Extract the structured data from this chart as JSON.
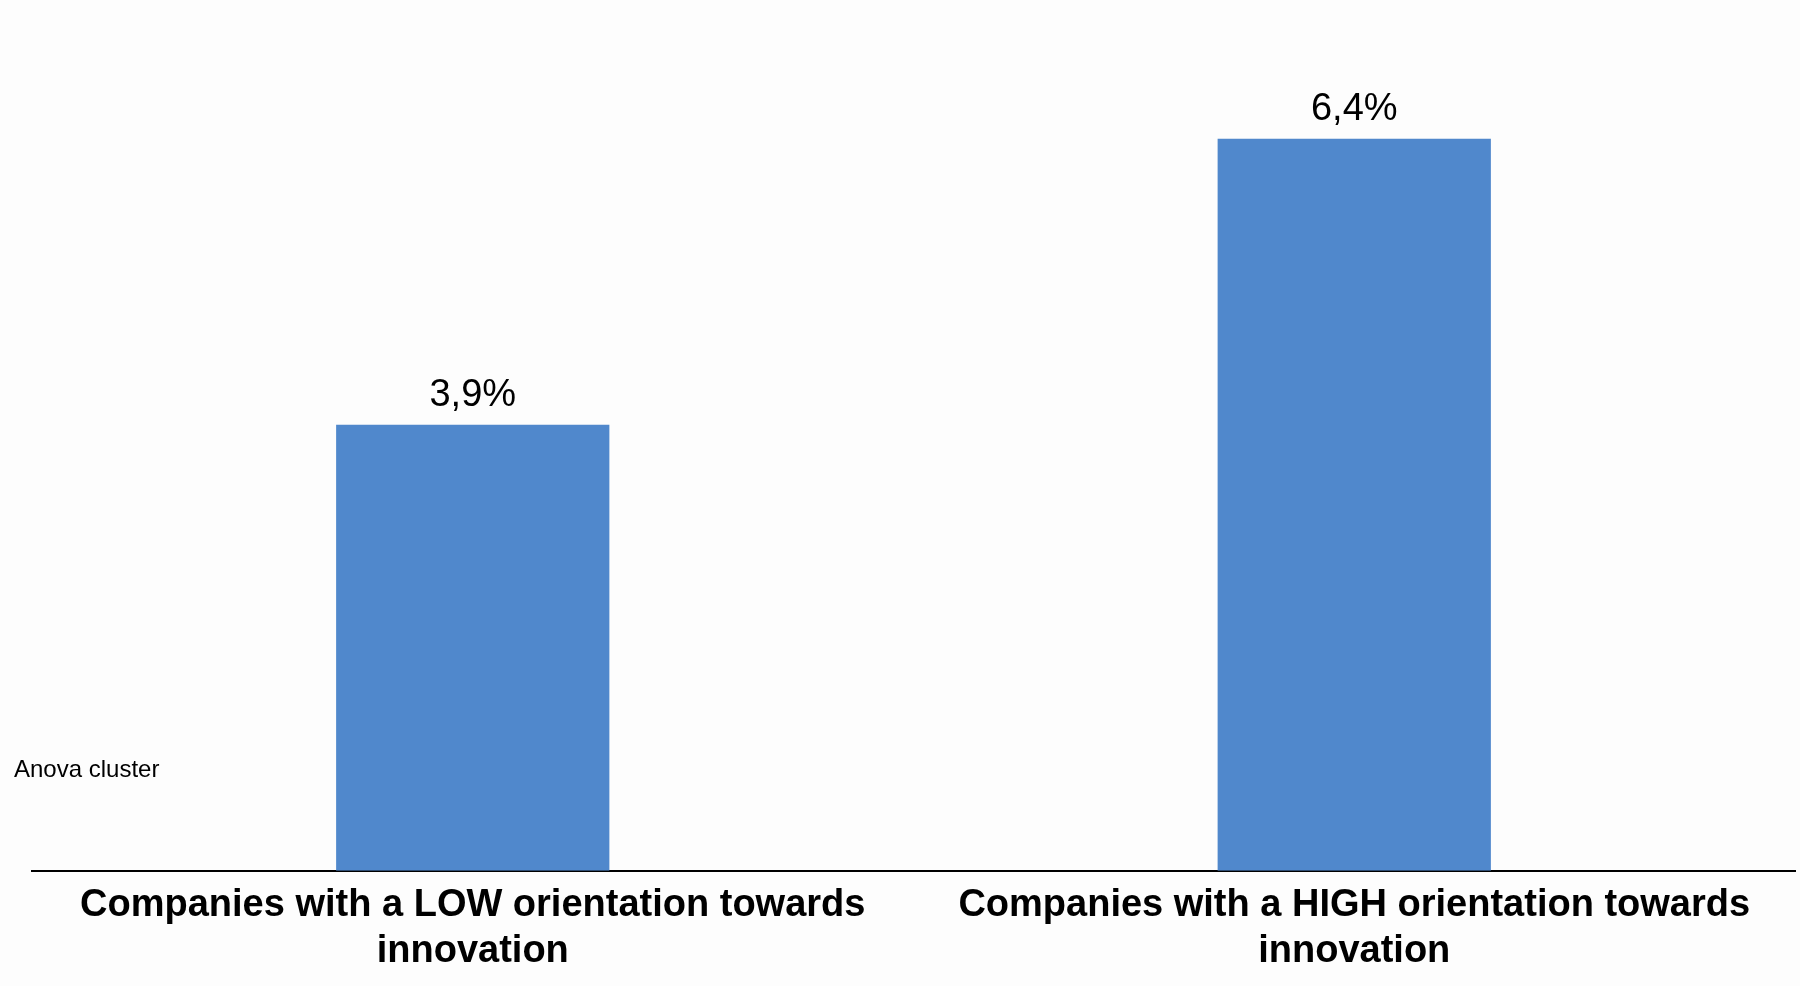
{
  "chart_data": {
    "type": "bar",
    "categories": [
      "Companies with a LOW orientation towards innovation",
      "Companies with a HIGH orientation towards innovation"
    ],
    "values": [
      3.9,
      6.4
    ],
    "value_labels": [
      "3,9%",
      "6,4%"
    ],
    "color": "#5088cc",
    "relative": false,
    "grid": false,
    "legend": false,
    "annotations": [
      "Anova cluster"
    ]
  }
}
